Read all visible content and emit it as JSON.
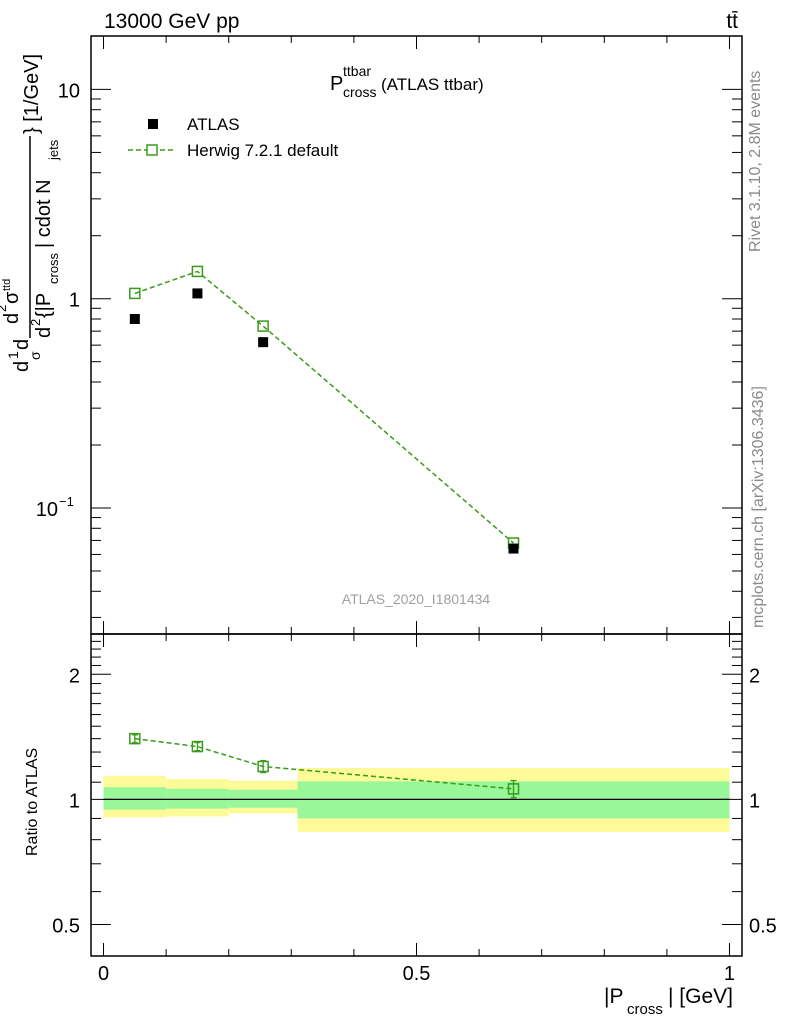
{
  "header": {
    "energy_label": "13000 GeV pp",
    "process_label": "tt̄"
  },
  "side_labels": {
    "rivet": "Rivet 3.1.10,  2.8M events",
    "mcplots": "mcplots.cern.ch [arXiv:1306.3436]"
  },
  "chart_data": [
    {
      "type": "scatter",
      "title": {
        "main": "P",
        "sup": "ttbar",
        "sub": "cross",
        "suffix": " (ATLAS ttbar)"
      },
      "analysis_tag": "ATLAS_2020_I1801434",
      "ylabel_parts": [
        "d",
        "1",
        "σ",
        "d",
        "d",
        "2",
        "σ",
        "ttd",
        "d",
        "2",
        " {|P",
        "cross",
        "| cdot N",
        "jets",
        "} [1/GeV]"
      ],
      "yscale": "log",
      "ylim": [
        0.025,
        18
      ],
      "xlim": [
        -0.02,
        1.02
      ],
      "y_ticks": [
        {
          "value": 0.1,
          "base": "10",
          "exp": "−1"
        },
        {
          "value": 1,
          "base": "1",
          "exp": ""
        },
        {
          "value": 10,
          "base": "10",
          "exp": ""
        }
      ],
      "legend_position": "top-left",
      "series": [
        {
          "name": "ATLAS",
          "marker": "filled-square",
          "color": "#000000",
          "x": [
            0.05,
            0.15,
            0.255,
            0.655
          ],
          "y": [
            0.8,
            1.06,
            0.62,
            0.064
          ]
        },
        {
          "name": "Herwig 7.2.1 default",
          "marker": "open-square",
          "line": "dashed",
          "color": "#3a9a1a",
          "x": [
            0.05,
            0.15,
            0.255,
            0.655
          ],
          "y": [
            1.06,
            1.35,
            0.74,
            0.068
          ]
        }
      ]
    },
    {
      "type": "scatter",
      "ylabel": "Ratio to ATLAS",
      "xlabel_parts": [
        "|P",
        "cross",
        "| [GeV]"
      ],
      "yscale": "log",
      "ylim": [
        0.42,
        2.5
      ],
      "xlim": [
        -0.02,
        1.02
      ],
      "x_ticks": [
        {
          "value": 0,
          "label": "0"
        },
        {
          "value": 0.5,
          "label": "0.5"
        },
        {
          "value": 1,
          "label": "1"
        }
      ],
      "y_ticks": [
        {
          "value": 0.5,
          "label": "0.5"
        },
        {
          "value": 1,
          "label": "1"
        },
        {
          "value": 2,
          "label": "2"
        }
      ],
      "reference_line": 1,
      "bands": [
        {
          "x0": 0.0,
          "x1": 0.1,
          "inner": [
            0.945,
            1.07
          ],
          "outer": [
            0.905,
            1.14
          ]
        },
        {
          "x0": 0.1,
          "x1": 0.2,
          "inner": [
            0.95,
            1.06
          ],
          "outer": [
            0.91,
            1.12
          ]
        },
        {
          "x0": 0.2,
          "x1": 0.31,
          "inner": [
            0.955,
            1.055
          ],
          "outer": [
            0.925,
            1.11
          ]
        },
        {
          "x0": 0.31,
          "x1": 1.0,
          "inner": [
            0.9,
            1.105
          ],
          "outer": [
            0.835,
            1.19
          ]
        }
      ],
      "band_colors": {
        "inner": "#99f799",
        "outer": "#fdfb99"
      },
      "series": [
        {
          "name": "Herwig 7.2.1 default",
          "marker": "open-square",
          "line": "dashed",
          "color": "#3a9a1a",
          "x": [
            0.05,
            0.15,
            0.255,
            0.655
          ],
          "y": [
            1.4,
            1.34,
            1.2,
            1.06
          ],
          "err": [
            0.03,
            0.03,
            0.04,
            0.05
          ]
        }
      ]
    }
  ]
}
